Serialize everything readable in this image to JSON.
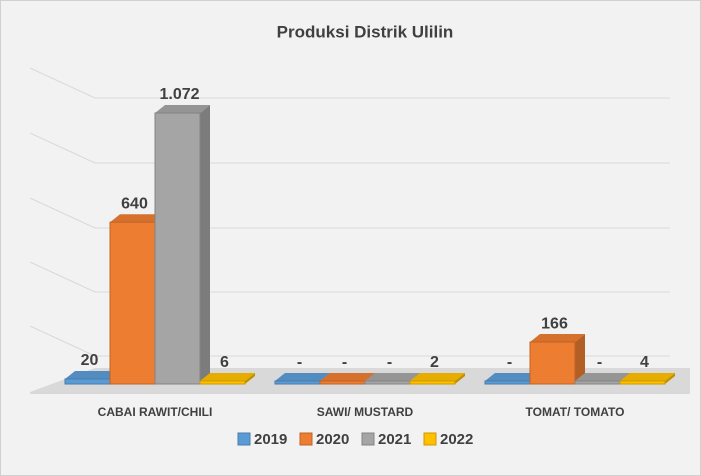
{
  "chart_data": {
    "type": "bar3d",
    "title": "Produksi Distrik Ulilin",
    "categories": [
      "CABAI RAWIT/CHILI",
      "SAWI/ MUSTARD",
      "TOMAT/ TOMATO"
    ],
    "series": [
      {
        "name": "2019",
        "color": "#5b9bd5",
        "values": [
          20,
          0,
          0
        ],
        "value_labels": [
          "20",
          "-",
          "-"
        ]
      },
      {
        "name": "2020",
        "color": "#ed7d31",
        "values": [
          640,
          0,
          166
        ],
        "value_labels": [
          "640",
          "-",
          "166"
        ]
      },
      {
        "name": "2021",
        "color": "#a5a5a5",
        "values": [
          1072,
          0,
          0
        ],
        "value_labels": [
          "1.072",
          "-",
          "-"
        ]
      },
      {
        "name": "2022",
        "color": "#ffc000",
        "values": [
          6,
          2,
          4
        ],
        "value_labels": [
          "6",
          "2",
          "4"
        ]
      }
    ],
    "ylim": [
      0,
      1250
    ],
    "legend": "bottom"
  }
}
